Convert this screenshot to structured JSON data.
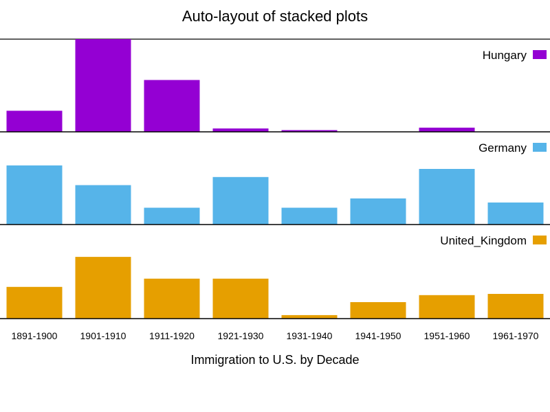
{
  "chart_data": {
    "type": "bar",
    "layout": "stacked-panels",
    "title": "Auto-layout of stacked plots",
    "xlabel": "Immigration to U.S. by Decade",
    "ylabel": "",
    "categories": [
      "1891-1900",
      "1901-1910",
      "1911-1920",
      "1921-1930",
      "1931-1940",
      "1941-1950",
      "1951-1960",
      "1961-1970"
    ],
    "series": [
      {
        "name": "Hungary",
        "color": "#9400d3",
        "ylim": [
          0,
          2200000
        ],
        "values": [
          500000,
          2200000,
          1230000,
          80000,
          40000,
          0,
          100000,
          0
        ]
      },
      {
        "name": "Germany",
        "color": "#56b4e9",
        "ylim": [
          0,
          800000
        ],
        "values": [
          510000,
          340000,
          145000,
          410000,
          145000,
          225000,
          480000,
          190000
        ]
      },
      {
        "name": "United_Kingdom",
        "color": "#e69f00",
        "ylim": [
          0,
          800000
        ],
        "values": [
          270000,
          525000,
          340000,
          340000,
          30000,
          140000,
          200000,
          210000
        ]
      }
    ],
    "legend_position": "top-right",
    "grid": false
  }
}
